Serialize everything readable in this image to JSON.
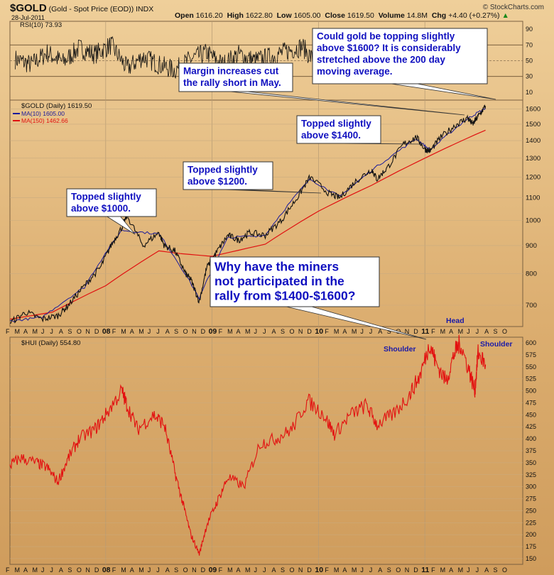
{
  "header": {
    "symbol": "$GOLD",
    "description": "(Gold - Spot Price (EOD))",
    "exchange": "INDX",
    "date": "28-Jul-2011",
    "open_label": "Open",
    "open": "1616.20",
    "high_label": "High",
    "high": "1622.80",
    "low_label": "Low",
    "low": "1605.00",
    "close_label": "Close",
    "close": "1619.50",
    "volume_label": "Volume",
    "volume": "14.8M",
    "chg_label": "Chg",
    "chg": "+4.40 (+0.27%)",
    "chg_icon": "▲",
    "watermark": "© StockCharts.com"
  },
  "colors": {
    "price": "#111111",
    "ma10": "#1a1a9a",
    "ma150": "#e01010",
    "hui": "#e31010",
    "callout_text": "#1010c0",
    "shoulder_text": "#1a1aa8"
  },
  "chart_data": [
    {
      "type": "line",
      "panel": "RSI",
      "legend": "RSI(10) 73.93",
      "ylim": [
        0,
        100
      ],
      "yticks": [
        10,
        30,
        50,
        70,
        90
      ],
      "reference_lines": [
        30,
        50,
        70
      ],
      "x": [
        2007.15,
        2007.3,
        2007.45,
        2007.6,
        2007.75,
        2007.9,
        2008.05,
        2008.2,
        2008.35,
        2008.5,
        2008.65,
        2008.8,
        2008.95,
        2009.1,
        2009.25,
        2009.4,
        2009.55,
        2009.7,
        2009.85,
        2010.0,
        2010.15,
        2010.3,
        2010.45,
        2010.6,
        2010.75,
        2010.9,
        2011.05,
        2011.2,
        2011.35,
        2011.45,
        2011.5,
        2011.55
      ],
      "values": [
        52,
        45,
        60,
        48,
        66,
        58,
        70,
        40,
        55,
        45,
        38,
        52,
        60,
        45,
        58,
        50,
        55,
        62,
        68,
        42,
        58,
        50,
        56,
        44,
        62,
        52,
        40,
        58,
        50,
        35,
        60,
        74
      ],
      "grid": true
    },
    {
      "type": "line",
      "panel": "GOLD",
      "legend": [
        "$GOLD (Daily) 1619.50",
        "MA(10) 1605.00",
        "MA(150) 1462.66"
      ],
      "ylim": [
        640,
        1660
      ],
      "yticks": [
        700,
        800,
        900,
        1000,
        1100,
        1200,
        1300,
        1400,
        1500,
        1600
      ],
      "xlim": [
        2007.1,
        2011.92
      ],
      "series": [
        {
          "name": "$GOLD",
          "x": [
            2007.1,
            2007.25,
            2007.4,
            2007.55,
            2007.65,
            2007.8,
            2007.95,
            2008.05,
            2008.15,
            2008.2,
            2008.35,
            2008.5,
            2008.55,
            2008.65,
            2008.75,
            2008.8,
            2008.88,
            2008.95,
            2009.05,
            2009.15,
            2009.25,
            2009.35,
            2009.5,
            2009.65,
            2009.8,
            2009.92,
            2010.1,
            2010.2,
            2010.35,
            2010.5,
            2010.55,
            2010.65,
            2010.8,
            2010.92,
            2011.0,
            2011.05,
            2011.15,
            2011.3,
            2011.4,
            2011.45,
            2011.5,
            2011.57
          ],
          "values": [
            650,
            680,
            660,
            670,
            700,
            760,
            820,
            900,
            970,
            1020,
            900,
            950,
            900,
            880,
            800,
            780,
            710,
            820,
            880,
            940,
            920,
            950,
            940,
            1000,
            1100,
            1200,
            1120,
            1100,
            1180,
            1240,
            1190,
            1250,
            1380,
            1420,
            1350,
            1340,
            1420,
            1500,
            1540,
            1500,
            1550,
            1619.5
          ]
        },
        {
          "name": "MA(10)",
          "x": [
            2007.1,
            2007.4,
            2007.8,
            2008.15,
            2008.5,
            2008.88,
            2009.15,
            2009.5,
            2009.92,
            2010.2,
            2010.5,
            2010.92,
            2011.05,
            2011.4,
            2011.57
          ],
          "values": [
            655,
            665,
            755,
            960,
            945,
            720,
            930,
            940,
            1190,
            1105,
            1235,
            1410,
            1345,
            1535,
            1605
          ]
        },
        {
          "name": "MA(150)",
          "x": [
            2007.1,
            2007.5,
            2008.0,
            2008.5,
            2008.7,
            2009.0,
            2009.5,
            2010.0,
            2010.5,
            2011.0,
            2011.57
          ],
          "values": [
            660,
            680,
            760,
            880,
            870,
            860,
            905,
            1040,
            1160,
            1300,
            1462.66
          ]
        }
      ],
      "annotations": [
        {
          "text": "Topped slightly above $1000.",
          "lines": [
            "Topped slightly",
            "above $1000."
          ],
          "x": 2008.2,
          "y": 1020
        },
        {
          "text": "Topped slightly above $1200.",
          "lines": [
            "Topped slightly",
            "above $1200."
          ],
          "x": 2009.92,
          "y": 1220
        },
        {
          "text": "Topped slightly above $1400.",
          "lines": [
            "Topped slightly",
            "above $1400."
          ],
          "x": 2010.9,
          "y": 1420
        },
        {
          "text": "Margin increases cut the rally short in May.",
          "lines": [
            "Margin increases cut",
            "the rally short in May."
          ],
          "x": 2011.35,
          "y": 1570
        },
        {
          "text": "Could gold be topping slightly above $1600? It is considerably stretched above the 200 day moving average.",
          "lines": [
            "Could gold be topping slightly",
            "above $1600? It is considerably",
            "stretched above the 200 day",
            "moving average."
          ],
          "x": 2011.57,
          "y": 1620
        },
        {
          "text": "Why have the miners not participated in the rally from $1400-$1600?",
          "lines": [
            "Why have the miners",
            "not participated in the",
            "rally from $1400-$1600?"
          ],
          "x": 2010.92,
          "y": 1700
        }
      ]
    },
    {
      "type": "line",
      "panel": "HUI",
      "legend": "$HUI (Daily) 554.80",
      "ylim": [
        138,
        612
      ],
      "yticks": [
        150,
        175,
        200,
        225,
        250,
        275,
        300,
        325,
        350,
        375,
        400,
        425,
        450,
        475,
        500,
        525,
        550,
        575,
        600
      ],
      "xlim": [
        2007.1,
        2011.92
      ],
      "series": [
        {
          "name": "$HUI",
          "x": [
            2007.1,
            2007.2,
            2007.35,
            2007.45,
            2007.55,
            2007.65,
            2007.75,
            2007.9,
            2008.0,
            2008.15,
            2008.2,
            2008.3,
            2008.45,
            2008.55,
            2008.65,
            2008.72,
            2008.8,
            2008.88,
            2008.95,
            2009.05,
            2009.15,
            2009.3,
            2009.45,
            2009.6,
            2009.75,
            2009.9,
            2010.05,
            2010.15,
            2010.3,
            2010.45,
            2010.55,
            2010.7,
            2010.85,
            2010.95,
            2011.05,
            2011.1,
            2011.2,
            2011.28,
            2011.33,
            2011.42,
            2011.47,
            2011.5,
            2011.57
          ],
          "values": [
            345,
            360,
            350,
            340,
            310,
            360,
            400,
            420,
            450,
            500,
            470,
            420,
            450,
            430,
            330,
            270,
            200,
            160,
            220,
            270,
            320,
            300,
            390,
            400,
            420,
            480,
            450,
            410,
            450,
            470,
            430,
            450,
            490,
            530,
            600,
            560,
            520,
            580,
            600,
            540,
            500,
            580,
            554.8
          ]
        }
      ],
      "annotations": [
        {
          "text": "Shoulder",
          "x": 2010.92,
          "y": 600
        },
        {
          "text": "Head",
          "x": 2011.15,
          "y": 640
        },
        {
          "text": "Shoulder",
          "x": 2011.55,
          "y": 590
        }
      ]
    }
  ],
  "time_axis": {
    "year_marks": [
      {
        "label": "08",
        "x": 2008.0
      },
      {
        "label": "09",
        "x": 2009.0
      },
      {
        "label": "10",
        "x": 2010.0
      },
      {
        "label": "11",
        "x": 2011.0
      }
    ],
    "month_labels": [
      "F",
      "M",
      "A",
      "M",
      "J",
      "J",
      "A",
      "S",
      "O",
      "N",
      "D",
      "",
      "F",
      "M",
      "A",
      "M",
      "J",
      "J",
      "A",
      "S",
      "O",
      "N",
      "D",
      "",
      "F",
      "M",
      "A",
      "M",
      "J",
      "J",
      "A",
      "S",
      "O",
      "N",
      "D",
      "",
      "F",
      "M",
      "A",
      "M",
      "J",
      "J",
      "A",
      "S",
      "O",
      "N",
      "D",
      "",
      "F",
      "M",
      "A",
      "M",
      "J",
      "J",
      "A",
      "S",
      "O"
    ],
    "month_start": 2007.08
  }
}
